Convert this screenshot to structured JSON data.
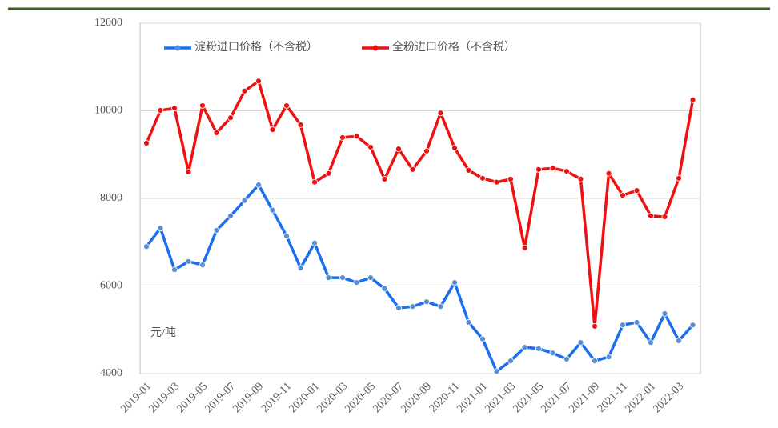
{
  "chart_data": {
    "type": "line",
    "categories": [
      "2019-01",
      null,
      "2019-03",
      null,
      "2019-05",
      null,
      "2019-07",
      null,
      "2019-09",
      null,
      "2019-11",
      null,
      "2020-01",
      null,
      "2020-03",
      null,
      "2020-05",
      null,
      "2020-07",
      null,
      "2020-09",
      null,
      "2020-11",
      null,
      "2021-01",
      null,
      "2021-03",
      null,
      "2021-05",
      null,
      "2021-07",
      null,
      "2021-09",
      null,
      "2021-11",
      null,
      "2022-01",
      null,
      "2022-03",
      null
    ],
    "series": [
      {
        "name": "淀粉进口价格（不含税）",
        "color": "#1a6ef0",
        "marker_color": "#5a8fcf",
        "values": [
          6900,
          7320,
          6370,
          6560,
          6480,
          7270,
          7600,
          7950,
          8310,
          7730,
          7140,
          6410,
          6980,
          6190,
          6190,
          6080,
          6190,
          5940,
          5500,
          5530,
          5640,
          5530,
          6080,
          5170,
          4790,
          4050,
          4290,
          4600,
          4570,
          4470,
          4330,
          4710,
          4290,
          4380,
          5110,
          5170,
          4710,
          5370,
          4750,
          5110
        ]
      },
      {
        "name": "全粉进口价格（不含税）",
        "color": "#ee1111",
        "marker_color": "#ee1111",
        "values": [
          9260,
          10010,
          10060,
          8600,
          10120,
          9500,
          9840,
          10450,
          10680,
          9570,
          10120,
          9680,
          8370,
          8570,
          9390,
          9420,
          9170,
          8440,
          9130,
          8660,
          9080,
          9950,
          9150,
          8640,
          8460,
          8370,
          8440,
          6870,
          8660,
          8690,
          8620,
          8440,
          5080,
          8570,
          8070,
          8180,
          7600,
          7580,
          8460,
          10250
        ]
      }
    ],
    "ylim": [
      4000,
      12000
    ],
    "yticks": [
      4000,
      6000,
      8000,
      10000,
      12000
    ],
    "grid": true,
    "annotation": "元/吨"
  }
}
